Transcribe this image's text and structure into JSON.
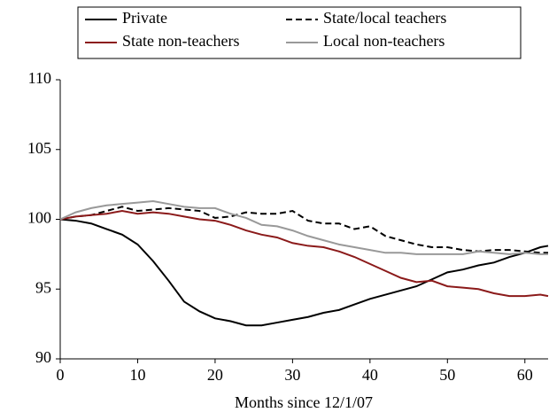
{
  "chart_data": {
    "type": "line",
    "x_label": "Months since 12/1/07",
    "x": [
      0,
      2,
      4,
      6,
      8,
      10,
      12,
      14,
      16,
      18,
      20,
      22,
      24,
      26,
      28,
      30,
      32,
      34,
      36,
      38,
      40,
      42,
      44,
      46,
      48,
      50,
      52,
      54,
      56,
      58,
      60,
      62,
      63
    ],
    "series": [
      {
        "name": "Private",
        "color": "#000000",
        "style": "solid",
        "values": [
          100,
          99.9,
          99.7,
          99.3,
          98.9,
          98.2,
          97,
          95.6,
          94.1,
          93.4,
          92.9,
          92.7,
          92.4,
          92.4,
          92.6,
          92.8,
          93,
          93.3,
          93.5,
          93.9,
          94.3,
          94.6,
          94.9,
          95.2,
          95.7,
          96.2,
          96.4,
          96.7,
          96.9,
          97.3,
          97.6,
          98,
          98.1
        ]
      },
      {
        "name": "State/local teachers",
        "color": "#000000",
        "style": "dashed",
        "values": [
          100,
          100.2,
          100.3,
          100.6,
          100.9,
          100.6,
          100.7,
          100.8,
          100.7,
          100.6,
          100.1,
          100.2,
          100.5,
          100.4,
          100.4,
          100.6,
          99.9,
          99.7,
          99.7,
          99.3,
          99.5,
          98.8,
          98.5,
          98.2,
          98,
          98,
          97.8,
          97.7,
          97.8,
          97.8,
          97.7,
          97.6,
          97.6
        ]
      },
      {
        "name": "State non-teachers",
        "color": "#8b1a1a",
        "style": "solid",
        "values": [
          100,
          100.2,
          100.3,
          100.4,
          100.6,
          100.4,
          100.5,
          100.4,
          100.2,
          100,
          99.9,
          99.6,
          99.2,
          98.9,
          98.7,
          98.3,
          98.1,
          98,
          97.7,
          97.3,
          96.8,
          96.3,
          95.8,
          95.5,
          95.6,
          95.2,
          95.1,
          95,
          94.7,
          94.5,
          94.5,
          94.6,
          94.5
        ]
      },
      {
        "name": "Local non-teachers",
        "color": "#999999",
        "style": "solid",
        "values": [
          100,
          100.5,
          100.8,
          101,
          101.1,
          101.2,
          101.3,
          101.1,
          100.9,
          100.8,
          100.8,
          100.4,
          100.1,
          99.6,
          99.5,
          99.2,
          98.8,
          98.5,
          98.2,
          98,
          97.8,
          97.6,
          97.6,
          97.5,
          97.5,
          97.5,
          97.5,
          97.7,
          97.6,
          97.5,
          97.6,
          97.5,
          97.5
        ]
      }
    ],
    "xlim": [
      0,
      63
    ],
    "xticks": [
      0,
      10,
      20,
      30,
      40,
      50,
      60
    ],
    "ylim": [
      90,
      110
    ],
    "yticks": [
      90,
      95,
      100,
      105,
      110
    ],
    "grid": false,
    "legend": "top"
  }
}
